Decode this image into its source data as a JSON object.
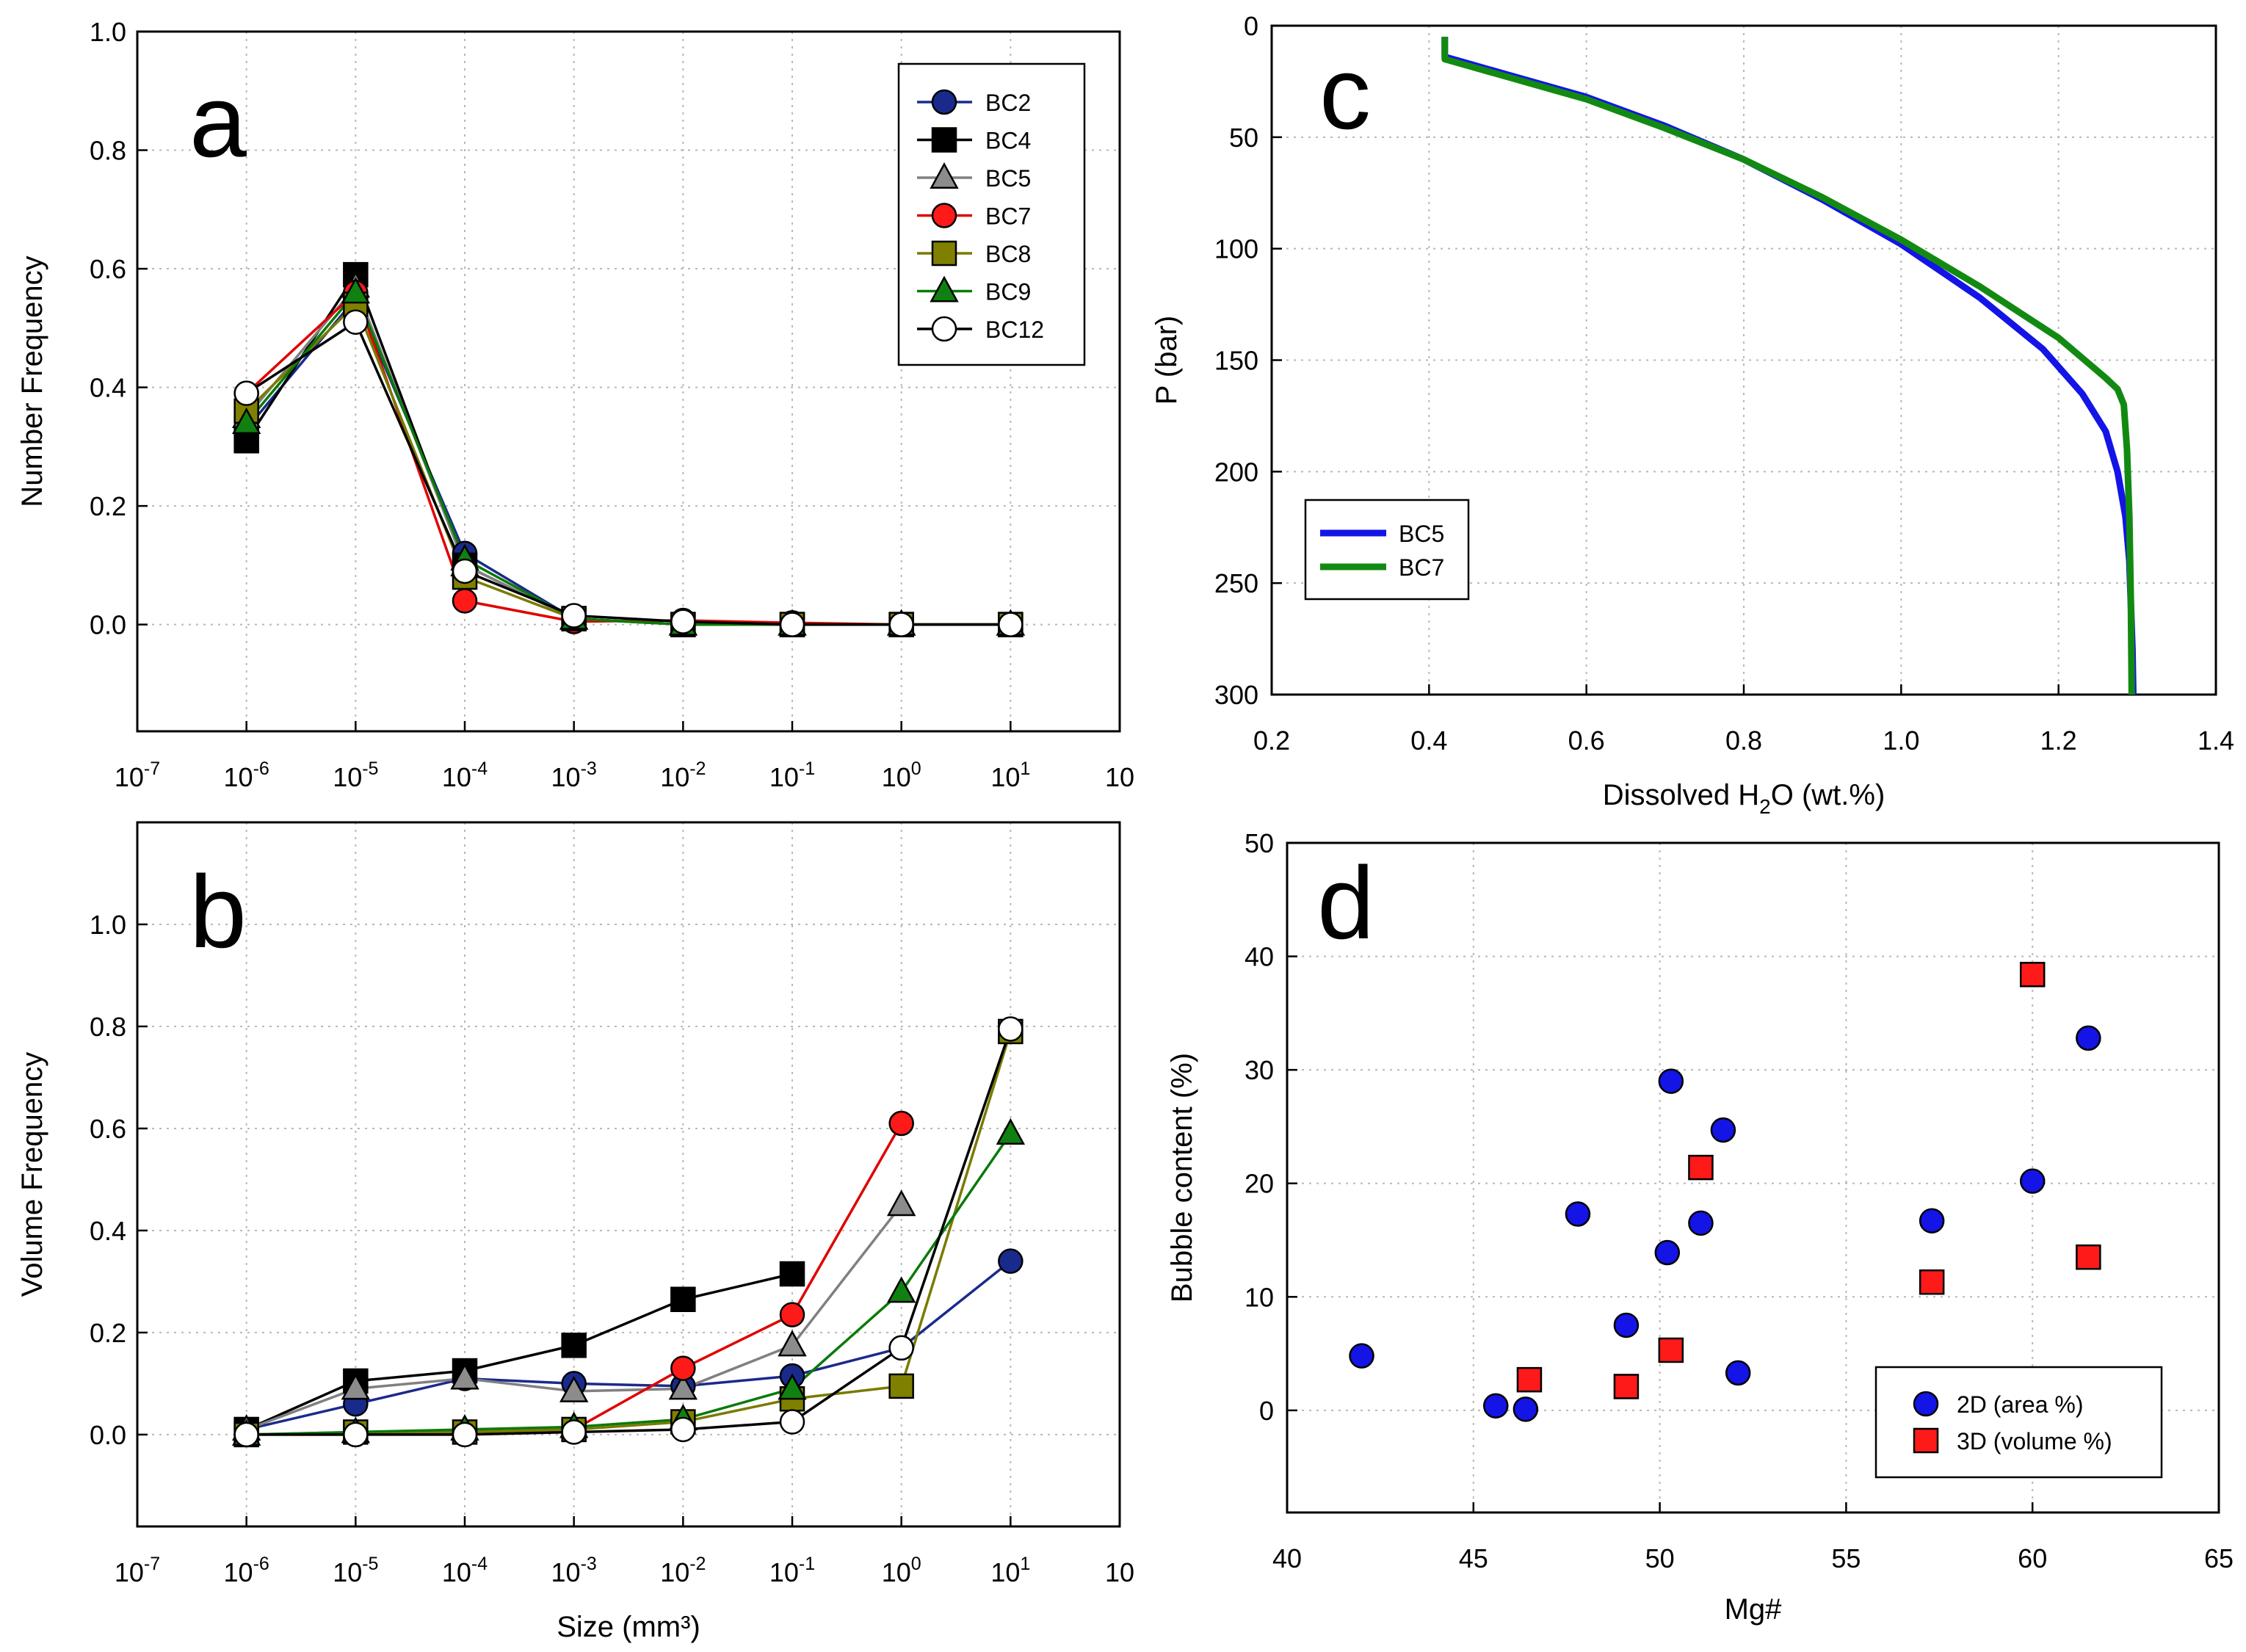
{
  "chart_data": [
    {
      "panel": "a",
      "type": "line",
      "panel_letter": "a",
      "xlabel": "",
      "ylabel": "Number Frequency",
      "x_ticks": [
        {
          "base": "10",
          "exp": "-7"
        },
        {
          "base": "10",
          "exp": "-6"
        },
        {
          "base": "10",
          "exp": "-5"
        },
        {
          "base": "10",
          "exp": "-4"
        },
        {
          "base": "10",
          "exp": "-3"
        },
        {
          "base": "10",
          "exp": "-2"
        },
        {
          "base": "10",
          "exp": "-1"
        },
        {
          "base": "10",
          "exp": "0"
        },
        {
          "base": "10",
          "exp": "1"
        },
        {
          "base": "10",
          "exp": ""
        }
      ],
      "y_ticks": [
        "0.0",
        "0.2",
        "0.4",
        "0.6",
        "0.8",
        "1.0"
      ],
      "ylim": [
        -0.18,
        1.0
      ],
      "xlim": [
        -7,
        2
      ],
      "legend_position": "top-right",
      "series": [
        {
          "name": "BC2",
          "color": "#1a2a8c",
          "marker": "circle",
          "fill": "#1a2a8c",
          "line": "#1a2a8c",
          "x": [
            -6,
            -5,
            -4,
            -3,
            -2,
            -1,
            0,
            1
          ],
          "y": [
            0.33,
            0.55,
            0.12,
            0.01,
            0.0,
            0.0,
            0.0,
            0.0
          ]
        },
        {
          "name": "BC4",
          "color": "#000000",
          "marker": "square",
          "fill": "#000000",
          "line": "#000000",
          "x": [
            -6,
            -5,
            -4,
            -3,
            -2,
            -1,
            0,
            1
          ],
          "y": [
            0.31,
            0.59,
            0.1,
            0.01,
            0.0,
            0.0,
            0.0,
            0.0
          ]
        },
        {
          "name": "BC5",
          "color": "#808080",
          "marker": "triangle",
          "fill": "#8c8c8c",
          "line": "#808080",
          "x": [
            -6,
            -5,
            -4,
            -3,
            -2,
            -1,
            0,
            1
          ],
          "y": [
            0.35,
            0.57,
            0.1,
            0.01,
            0.0,
            0.0,
            0.0,
            0.0
          ]
        },
        {
          "name": "BC7",
          "color": "#e00000",
          "marker": "circle",
          "fill": "#ff1a1a",
          "line": "#e00000",
          "x": [
            -6,
            -5,
            -4,
            -3,
            -2,
            -1,
            0,
            1
          ],
          "y": [
            0.39,
            0.56,
            0.04,
            0.005,
            0.007,
            0.003,
            0.0,
            0.0
          ]
        },
        {
          "name": "BC8",
          "color": "#7a7a00",
          "marker": "square",
          "fill": "#808000",
          "line": "#7a7a00",
          "x": [
            -6,
            -5,
            -4,
            -3,
            -2,
            -1,
            0,
            1
          ],
          "y": [
            0.36,
            0.54,
            0.08,
            0.01,
            0.0,
            0.0,
            0.0,
            0.0
          ]
        },
        {
          "name": "BC9",
          "color": "#0a7a0a",
          "marker": "triangle",
          "fill": "#108010",
          "line": "#0a7a0a",
          "x": [
            -6,
            -5,
            -4,
            -3,
            -2,
            -1,
            0,
            1
          ],
          "y": [
            0.34,
            0.56,
            0.11,
            0.01,
            0.0,
            0.0,
            0.0,
            0.0
          ]
        },
        {
          "name": "BC12",
          "color": "#000000",
          "marker": "circle",
          "fill": "#ffffff",
          "line": "#000000",
          "x": [
            -6,
            -5,
            -4,
            -3,
            -2,
            -1,
            0,
            1
          ],
          "y": [
            0.39,
            0.51,
            0.09,
            0.015,
            0.005,
            0.0,
            0.0,
            0.0
          ]
        }
      ]
    },
    {
      "panel": "b",
      "type": "line",
      "panel_letter": "b",
      "xlabel": "Size (mm³)",
      "ylabel": "Volume Frequency",
      "x_ticks": [
        {
          "base": "10",
          "exp": "-7"
        },
        {
          "base": "10",
          "exp": "-6"
        },
        {
          "base": "10",
          "exp": "-5"
        },
        {
          "base": "10",
          "exp": "-4"
        },
        {
          "base": "10",
          "exp": "-3"
        },
        {
          "base": "10",
          "exp": "-2"
        },
        {
          "base": "10",
          "exp": "-1"
        },
        {
          "base": "10",
          "exp": "0"
        },
        {
          "base": "10",
          "exp": "1"
        },
        {
          "base": "10",
          "exp": ""
        }
      ],
      "y_ticks": [
        "0.0",
        "0.2",
        "0.4",
        "0.6",
        "0.8",
        "1.0"
      ],
      "ylim": [
        -0.18,
        1.2
      ],
      "xlim": [
        -7,
        2
      ],
      "series": [
        {
          "name": "BC2",
          "fill": "#1a2a8c",
          "line": "#1a2a8c",
          "marker": "circle",
          "x": [
            -6,
            -5,
            -4,
            -3,
            -2,
            -1,
            0,
            1
          ],
          "y": [
            0.01,
            0.06,
            0.11,
            0.1,
            0.095,
            0.115,
            0.17,
            0.34
          ]
        },
        {
          "name": "BC4",
          "fill": "#000000",
          "line": "#000000",
          "marker": "square",
          "x": [
            -6,
            -5,
            -4,
            -3,
            -2,
            -1
          ],
          "y": [
            0.01,
            0.105,
            0.125,
            0.175,
            0.265,
            0.315
          ]
        },
        {
          "name": "BC5",
          "fill": "#8c8c8c",
          "line": "#808080",
          "marker": "triangle",
          "x": [
            -6,
            -5,
            -4,
            -3,
            -2,
            -1,
            0
          ],
          "y": [
            0.01,
            0.09,
            0.11,
            0.085,
            0.09,
            0.175,
            0.45
          ]
        },
        {
          "name": "BC7",
          "fill": "#ff1a1a",
          "line": "#e00000",
          "marker": "circle",
          "x": [
            -6,
            -5,
            -4,
            -3,
            -2,
            -1,
            0
          ],
          "y": [
            0.0,
            0.0,
            0.005,
            0.01,
            0.13,
            0.235,
            0.61
          ]
        },
        {
          "name": "BC8",
          "fill": "#808000",
          "line": "#7a7a00",
          "marker": "square",
          "x": [
            -6,
            -5,
            -4,
            -3,
            -2,
            -1,
            0,
            1
          ],
          "y": [
            0.0,
            0.005,
            0.005,
            0.01,
            0.025,
            0.07,
            0.095,
            0.79
          ]
        },
        {
          "name": "BC9",
          "fill": "#108010",
          "line": "#0a7a0a",
          "marker": "triangle",
          "x": [
            -6,
            -5,
            -4,
            -3,
            -2,
            -1,
            0,
            1
          ],
          "y": [
            0.0,
            0.005,
            0.01,
            0.015,
            0.03,
            0.09,
            0.28,
            0.59
          ]
        },
        {
          "name": "BC12",
          "fill": "#ffffff",
          "line": "#000000",
          "marker": "circle",
          "x": [
            -6,
            -5,
            -4,
            -3,
            -2,
            -1,
            0,
            1
          ],
          "y": [
            0.0,
            0.0,
            0.0,
            0.005,
            0.01,
            0.025,
            0.17,
            0.795
          ]
        }
      ]
    },
    {
      "panel": "c",
      "type": "line",
      "panel_letter": "c",
      "xlabel_main": "Dissolved H",
      "xlabel_sub": "2",
      "xlabel_tail": "O (wt.%)",
      "ylabel": "P (bar)",
      "x_ticks": [
        "0.2",
        "0.4",
        "0.6",
        "0.8",
        "1.0",
        "1.2",
        "1.4"
      ],
      "y_ticks": [
        "0",
        "50",
        "100",
        "150",
        "200",
        "250",
        "300"
      ],
      "xlim": [
        0.2,
        1.4
      ],
      "ylim": [
        0,
        300
      ],
      "legend_position": "lower-left",
      "series": [
        {
          "name": "BC5",
          "color": "#1414e6",
          "x": [
            0.42,
            0.42,
            0.45,
            0.5,
            0.6,
            0.7,
            0.8,
            0.9,
            1.0,
            1.1,
            1.18,
            1.23,
            1.26,
            1.275,
            1.285,
            1.29,
            1.292,
            1.294,
            1.295
          ],
          "y": [
            5,
            14,
            17,
            22,
            32,
            45,
            60,
            78,
            98,
            122,
            145,
            165,
            182,
            200,
            220,
            240,
            260,
            280,
            300
          ]
        },
        {
          "name": "BC7",
          "color": "#128a12",
          "x": [
            0.42,
            0.42,
            0.45,
            0.5,
            0.6,
            0.7,
            0.8,
            0.9,
            1.0,
            1.1,
            1.2,
            1.26,
            1.275,
            1.283,
            1.287,
            1.29,
            1.292,
            1.293
          ],
          "y": [
            5,
            15,
            18,
            23,
            33,
            46,
            60,
            77,
            96,
            117,
            140,
            158,
            163,
            170,
            190,
            220,
            260,
            300
          ]
        }
      ]
    },
    {
      "panel": "d",
      "type": "scatter",
      "panel_letter": "d",
      "xlabel": "Mg#",
      "ylabel": "Bubble content (%)",
      "x_ticks": [
        "40",
        "45",
        "50",
        "55",
        "60",
        "65"
      ],
      "y_ticks": [
        "0",
        "10",
        "20",
        "30",
        "40",
        "50"
      ],
      "xlim": [
        40,
        65
      ],
      "ylim": [
        -9,
        50
      ],
      "legend_position": "lower-right",
      "series": [
        {
          "name": "2D (area %)",
          "marker": "circle",
          "fill": "#1414e6",
          "x": [
            42.0,
            45.6,
            46.4,
            47.8,
            49.1,
            50.2,
            50.3,
            51.1,
            51.7,
            52.1,
            57.3,
            60.0,
            61.5
          ],
          "y": [
            4.8,
            0.4,
            0.1,
            17.3,
            7.5,
            13.9,
            29.0,
            16.5,
            24.7,
            3.3,
            16.7,
            20.2,
            32.8
          ]
        },
        {
          "name": "3D (volume %)",
          "marker": "square",
          "fill": "#ff1a1a",
          "x": [
            46.5,
            49.1,
            50.3,
            51.1,
            57.3,
            60.0,
            61.5
          ],
          "y": [
            2.7,
            2.1,
            5.3,
            21.4,
            11.3,
            38.4,
            13.5
          ]
        }
      ]
    }
  ]
}
